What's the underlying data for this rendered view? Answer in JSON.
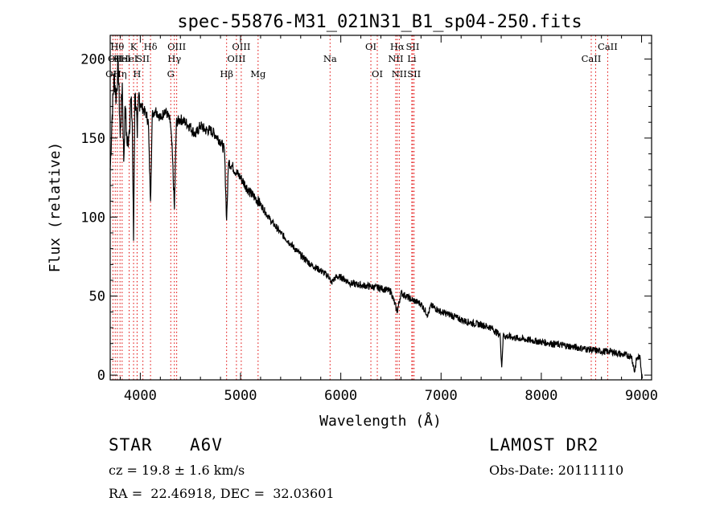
{
  "chart_data": {
    "type": "line",
    "title": "spec-55876-M31_021N31_B1_sp04-250.fits",
    "xlabel": "Wavelength (Å)",
    "ylabel": "Flux (relative)",
    "xlim": [
      3700,
      9100
    ],
    "ylim": [
      -3,
      215
    ],
    "xticks": [
      4000,
      5000,
      6000,
      7000,
      8000,
      9000
    ],
    "yticks": [
      0,
      50,
      100,
      150,
      200
    ],
    "grid": false,
    "series": [
      {
        "x": [
          3700,
          3720,
          3740,
          3760,
          3780,
          3800,
          3820,
          3835,
          3850,
          3870,
          3889,
          3905,
          3920,
          3933,
          3945,
          3960,
          3970,
          3985,
          4000,
          4030,
          4060,
          4080,
          4102,
          4120,
          4150,
          4180,
          4210,
          4240,
          4270,
          4300,
          4320,
          4340,
          4360,
          4400,
          4450,
          4500,
          4550,
          4600,
          4650,
          4700,
          4750,
          4800,
          4840,
          4861,
          4880,
          4920,
          4960,
          5000,
          5050,
          5100,
          5150,
          5200,
          5300,
          5400,
          5500,
          5600,
          5700,
          5800,
          5890,
          5900,
          5950,
          6000,
          6100,
          6200,
          6300,
          6400,
          6500,
          6563,
          6600,
          6700,
          6800,
          6869,
          6900,
          7000,
          7100,
          7200,
          7300,
          7400,
          7500,
          7590,
          7605,
          7620,
          7700,
          7800,
          7900,
          8000,
          8100,
          8200,
          8300,
          8400,
          8500,
          8600,
          8700,
          8800,
          8900,
          8930,
          8950,
          8980,
          9010
        ],
        "y": [
          130,
          165,
          190,
          175,
          198,
          150,
          185,
          135,
          170,
          145,
          155,
          175,
          160,
          85,
          178,
          170,
          150,
          178,
          172,
          168,
          165,
          160,
          110,
          165,
          168,
          165,
          162,
          168,
          165,
          160,
          140,
          105,
          160,
          162,
          160,
          157,
          152,
          158,
          155,
          155,
          152,
          148,
          142,
          98,
          135,
          132,
          128,
          125,
          120,
          115,
          112,
          108,
          98,
          90,
          83,
          76,
          70,
          66,
          62,
          58,
          62,
          62,
          58,
          57,
          56,
          55,
          53,
          40,
          52,
          48,
          45,
          38,
          44,
          40,
          38,
          35,
          33,
          32,
          30,
          25,
          5,
          25,
          24,
          23,
          22,
          21,
          20,
          19,
          18,
          17,
          16,
          15,
          15,
          13,
          12,
          2,
          10,
          12,
          -2
        ]
      }
    ],
    "lines": [
      {
        "wavelength": 3727,
        "rows": [
          3
        ],
        "text": [
          "OII"
        ]
      },
      {
        "wavelength": 3750,
        "rows": [
          2
        ],
        "text": [
          "OII"
        ]
      },
      {
        "wavelength": 3771,
        "rows": [
          1
        ],
        "text": [
          "Hθ"
        ]
      },
      {
        "wavelength": 3798,
        "rows": [
          3
        ],
        "text": [
          "Hη"
        ]
      },
      {
        "wavelength": 3819,
        "rows": [
          2
        ],
        "text": [
          "HeI"
        ]
      },
      {
        "wavelength": 3889,
        "rows": [
          2
        ],
        "text": [
          "HeI"
        ]
      },
      {
        "wavelength": 3933,
        "rows": [
          1
        ],
        "text": [
          "K"
        ]
      },
      {
        "wavelength": 3968,
        "rows": [
          3
        ],
        "text": [
          "H"
        ]
      },
      {
        "wavelength": 4026,
        "rows": [
          2
        ],
        "text": [
          "SII"
        ]
      },
      {
        "wavelength": 4102,
        "rows": [
          1
        ],
        "text": [
          "Hδ"
        ]
      },
      {
        "wavelength": 4304,
        "rows": [
          3
        ],
        "text": [
          "G"
        ]
      },
      {
        "wavelength": 4340,
        "rows": [
          2
        ],
        "text": [
          "Hγ"
        ]
      },
      {
        "wavelength": 4363,
        "rows": [
          1
        ],
        "text": [
          "OIII"
        ]
      },
      {
        "wavelength": 4861,
        "rows": [
          3
        ],
        "text": [
          "Hβ"
        ]
      },
      {
        "wavelength": 4959,
        "rows": [
          2
        ],
        "text": [
          "OIII"
        ]
      },
      {
        "wavelength": 5007,
        "rows": [
          1
        ],
        "text": [
          "OIII"
        ]
      },
      {
        "wavelength": 5175,
        "rows": [
          3
        ],
        "text": [
          "Mg"
        ]
      },
      {
        "wavelength": 5893,
        "rows": [
          2
        ],
        "text": [
          "Na"
        ]
      },
      {
        "wavelength": 6300,
        "rows": [
          1
        ],
        "text": [
          "OI"
        ]
      },
      {
        "wavelength": 6364,
        "rows": [
          3
        ],
        "text": [
          "OI"
        ]
      },
      {
        "wavelength": 6548,
        "rows": [
          2
        ],
        "text": [
          "NII"
        ]
      },
      {
        "wavelength": 6563,
        "rows": [
          1
        ],
        "text": [
          "Hα"
        ]
      },
      {
        "wavelength": 6583,
        "rows": [
          3
        ],
        "text": [
          "NII"
        ]
      },
      {
        "wavelength": 6708,
        "rows": [
          2
        ],
        "text": [
          "Li"
        ]
      },
      {
        "wavelength": 6717,
        "rows": [
          1
        ],
        "text": [
          "SII"
        ]
      },
      {
        "wavelength": 6731,
        "rows": [
          3
        ],
        "text": [
          "SII"
        ]
      },
      {
        "wavelength": 8498,
        "rows": [
          2
        ],
        "text": [
          "CaII"
        ]
      },
      {
        "wavelength": 8542,
        "rows": [
          0
        ],
        "text": [
          ""
        ]
      },
      {
        "wavelength": 8662,
        "rows": [
          1
        ],
        "text": [
          "CaII"
        ]
      }
    ],
    "line_color": "#e00000",
    "spectrum_color": "#000000"
  },
  "info": {
    "object_class": "STAR",
    "subclass": "A6V",
    "survey": "LAMOST DR2",
    "redshift": "cz = 19.8 ± 1.6 km/s",
    "obs_date": "Obs-Date: 20111110",
    "coords": "RA =  22.46918, DEC =  32.03601"
  }
}
